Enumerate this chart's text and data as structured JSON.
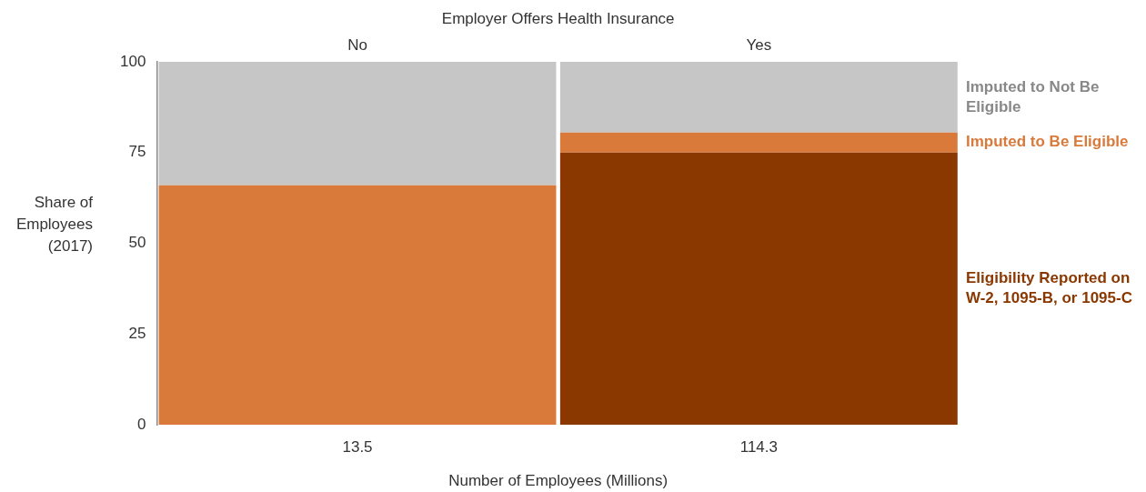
{
  "chart_data": {
    "type": "bar",
    "stacked": true,
    "title": "Employer Offers Health Insurance",
    "xlabel": "Number of Employees (Millions)",
    "ylabel": "Share of Employees (2017)",
    "categories": [
      "No",
      "Yes"
    ],
    "series": [
      {
        "name": "Eligibility Reported on W-2, 1095-B, or 1095-C",
        "color": "#8b3800",
        "values": [
          null,
          75
        ]
      },
      {
        "name": "Imputed to Be Eligible",
        "color": "#d9793a",
        "values": [
          66,
          5.5
        ]
      },
      {
        "name": "Imputed to Not Be Eligible",
        "color": "#c6c6c6",
        "values": [
          34,
          19.5
        ]
      }
    ],
    "annotations": [
      "13.5",
      "114.3"
    ],
    "ylim": [
      0,
      100
    ],
    "yticks": [
      0,
      25,
      50,
      75,
      100
    ],
    "grid": false,
    "legend": false
  }
}
